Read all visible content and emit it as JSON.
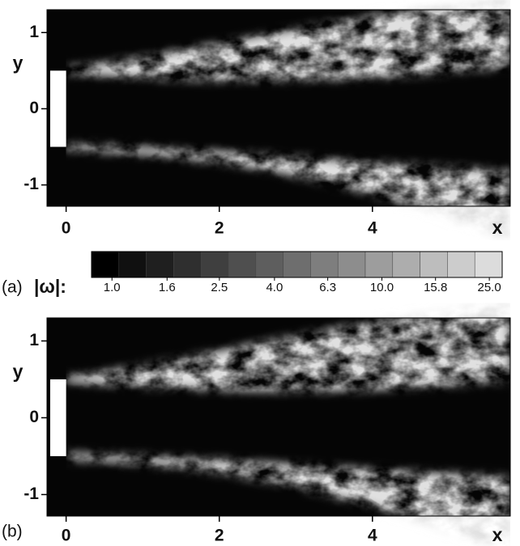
{
  "chart_data": [
    {
      "type": "heatmap",
      "panel_label": "(a)",
      "x_label": "x",
      "y_label": "y",
      "xlim": [
        -0.25,
        5.8
      ],
      "ylim": [
        -1.28,
        1.3
      ],
      "xticks": [
        0,
        2,
        4
      ],
      "yticks": [
        -1,
        0,
        1
      ],
      "colorbar": {
        "label": "|ω|:",
        "log": true,
        "clim": [
          0.84,
          27.9
        ],
        "ticks": [
          {
            "value": 1.0,
            "label": "1.0"
          },
          {
            "value": 1.6,
            "label": "1.6"
          },
          {
            "value": 2.5,
            "label": "2.5"
          },
          {
            "value": 4.0,
            "label": "4.0"
          },
          {
            "value": 6.3,
            "label": "6.3"
          },
          {
            "value": 10.0,
            "label": "10.0"
          },
          {
            "value": 15.8,
            "label": "15.8"
          },
          {
            "value": 25.0,
            "label": "25.0"
          }
        ]
      }
    },
    {
      "type": "heatmap",
      "panel_label": "(b)",
      "x_label": "x",
      "y_label": "y",
      "xlim": [
        -0.25,
        5.8
      ],
      "ylim": [
        -1.28,
        1.3
      ],
      "xticks": [
        0,
        2,
        4
      ],
      "yticks": [
        -1,
        0,
        1
      ]
    }
  ]
}
